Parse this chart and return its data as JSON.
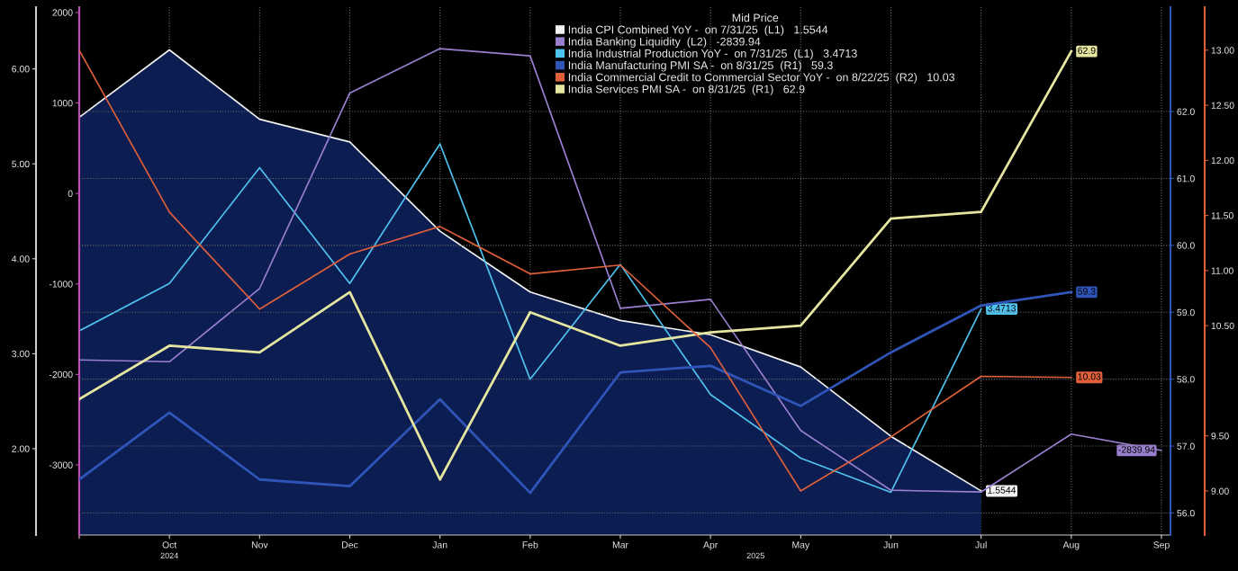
{
  "chart_data": [
    {
      "type": "line",
      "categories": [
        null,
        "Oct",
        "Nov",
        "Dec",
        "Jan",
        "Feb",
        "Mar",
        "Apr",
        "May",
        "Jun",
        "Jul",
        "Aug",
        "Sep"
      ],
      "annotations": [
        "2024",
        "2025"
      ],
      "grid": "x",
      "legend": "top right",
      "legend_title": "Mid Price",
      "ylim": [
        1.09,
        6.65
      ],
      "yticks": [
        {
          "value": 2,
          "label": "2.00"
        },
        {
          "value": 3,
          "label": "3.00"
        },
        {
          "value": 4,
          "label": "4.00"
        },
        {
          "value": 5,
          "label": "5.00"
        },
        {
          "value": 6,
          "label": "6.00"
        }
      ],
      "y2lim": [
        -3775,
        2058
      ],
      "y2ticks": [
        -3000,
        -2000,
        -1000,
        0,
        1000,
        2000
      ],
      "series": [
        {
          "name": "India CPI Combined YoY -  on 7/31/25  (L1)   1.5544",
          "type": "area",
          "color": "#f2f2f2",
          "values": [
            5.49,
            6.2,
            5.47,
            5.23,
            4.29,
            3.65,
            3.35,
            3.2,
            2.86,
            2.13,
            1.5544,
            null,
            null
          ],
          "value_labels": [
            null,
            null,
            null,
            null,
            null,
            null,
            null,
            null,
            null,
            null,
            "1.5544",
            null,
            null
          ]
        },
        {
          "name": "India Banking Liquidity  (L2)   -2839.94",
          "axis": "y2",
          "color": "#9a7fd0",
          "values": [
            -1840,
            -1860,
            -1050,
            1110,
            1600,
            1520,
            -1270,
            -1170,
            -2620,
            -3280,
            -3300,
            -2660,
            -2839.94
          ],
          "value_labels": [
            null,
            null,
            null,
            null,
            null,
            null,
            null,
            null,
            null,
            null,
            null,
            null,
            "-2839.94"
          ]
        },
        {
          "name": "India Industrial Production YoY -  on 7/31/25  (L1)   3.4713",
          "color": "#4fc3f0",
          "values": [
            3.24,
            3.74,
            4.96,
            3.74,
            5.21,
            2.73,
            3.94,
            2.57,
            1.9,
            1.54,
            3.4713,
            null,
            null
          ],
          "value_labels": [
            null,
            null,
            null,
            null,
            null,
            null,
            null,
            null,
            null,
            null,
            "3.4713",
            null,
            null
          ]
        }
      ]
    },
    {
      "type": "line",
      "categories": [
        null,
        null,
        null,
        null,
        null,
        null,
        null,
        null,
        null,
        null,
        null,
        null,
        null
      ],
      "tick_labels": "y",
      "grid": "y",
      "legend": "top right",
      "ylim": [
        55.67,
        63.56
      ],
      "yticks": [
        {
          "value": 56,
          "label": "56.0"
        },
        {
          "value": 57,
          "label": "57.0"
        },
        {
          "value": 58,
          "label": "58.0"
        },
        {
          "value": 59,
          "label": "59.0"
        },
        {
          "value": 60,
          "label": "60.0"
        },
        {
          "value": 61,
          "label": "61.0"
        },
        {
          "value": 62,
          "label": "62.0"
        }
      ],
      "y2lim": [
        8.6,
        13.39
      ],
      "y2ticks": [
        {
          "value": 9,
          "label": "9.00"
        },
        {
          "value": 9.5,
          "label": "9.50"
        },
        {
          "value": 10.5,
          "label": "10.50"
        },
        {
          "value": 11,
          "label": "11.00"
        },
        {
          "value": 11.5,
          "label": "11.50"
        },
        {
          "value": 12,
          "label": "12.00"
        },
        {
          "value": 12.5,
          "label": "12.50"
        },
        {
          "value": 13,
          "label": "13.00"
        }
      ],
      "series": [
        {
          "name": "India Manufacturing PMI SA -  on 8/31/25  (R1)   59.3",
          "color": "#2f55b8",
          "values": [
            56.5,
            57.5,
            56.5,
            56.4,
            57.7,
            56.3,
            58.1,
            58.2,
            57.6,
            58.4,
            59.1,
            59.3,
            null
          ],
          "value_labels": [
            null,
            null,
            null,
            null,
            null,
            null,
            null,
            null,
            null,
            null,
            null,
            "59.3",
            null
          ]
        },
        {
          "name": "India Commercial Credit to Commercial Sector YoY -  on 8/22/25  (R2)   10.03",
          "axis": "y2",
          "color": "#e0603a",
          "values": [
            13.0,
            11.53,
            10.65,
            11.15,
            11.4,
            10.97,
            11.05,
            10.3,
            9.0,
            9.49,
            10.04,
            10.03,
            null
          ],
          "value_labels": [
            null,
            null,
            null,
            null,
            null,
            null,
            null,
            null,
            null,
            null,
            null,
            "10.03",
            null
          ]
        },
        {
          "name": "India Services PMI SA -  on 8/31/25  (R1)   62.9",
          "color": "#e6e6a0",
          "values": [
            57.7,
            58.5,
            58.4,
            59.3,
            56.5,
            59.0,
            58.5,
            58.7,
            58.8,
            60.4,
            60.5,
            62.9,
            null
          ],
          "value_labels": [
            null,
            null,
            null,
            null,
            null,
            null,
            null,
            null,
            null,
            null,
            null,
            "62.9",
            null
          ]
        }
      ]
    }
  ]
}
